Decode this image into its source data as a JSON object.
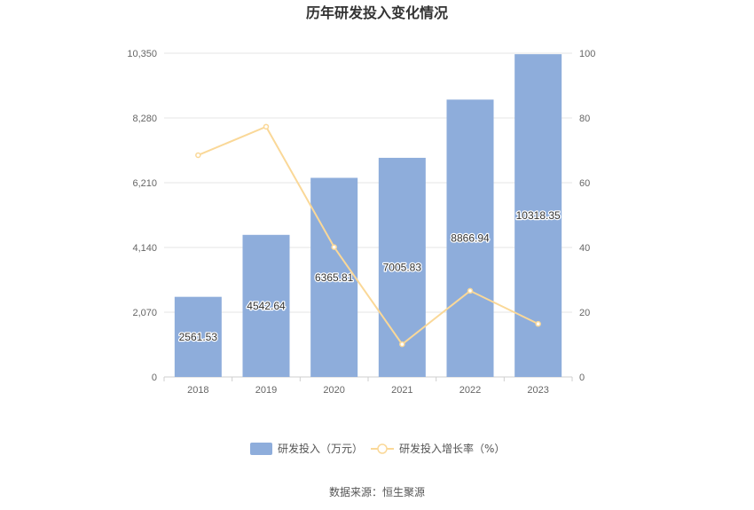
{
  "chart_data": {
    "type": "bar",
    "title": "历年研发投入变化情况",
    "categories": [
      "2018",
      "2019",
      "2020",
      "2021",
      "2022",
      "2023"
    ],
    "series": [
      {
        "name": "研发投入（万元）",
        "type": "bar",
        "axis": "left",
        "color": "#8eaddb",
        "values": [
          2561.53,
          4542.64,
          6365.81,
          7005.83,
          8866.94,
          10318.35
        ],
        "labels": [
          "2561.53",
          "4542.64",
          "6365.81",
          "7005.83",
          "8866.94",
          "10318.35"
        ]
      },
      {
        "name": "研发投入增长率（%）",
        "type": "line",
        "axis": "right",
        "color": "#fad898",
        "values": [
          68.5,
          77.3,
          40.1,
          10.1,
          26.6,
          16.4
        ]
      }
    ],
    "left_axis": {
      "ticks": [
        "0",
        "2,070",
        "4,140",
        "6,210",
        "8,280",
        "10,350"
      ],
      "range": [
        0,
        10350
      ]
    },
    "right_axis": {
      "ticks": [
        "0",
        "20",
        "40",
        "60",
        "80",
        "100"
      ],
      "range": [
        0,
        100
      ]
    },
    "grid": true,
    "legend_position": "bottom"
  },
  "source_text": "数据来源：恒生聚源"
}
